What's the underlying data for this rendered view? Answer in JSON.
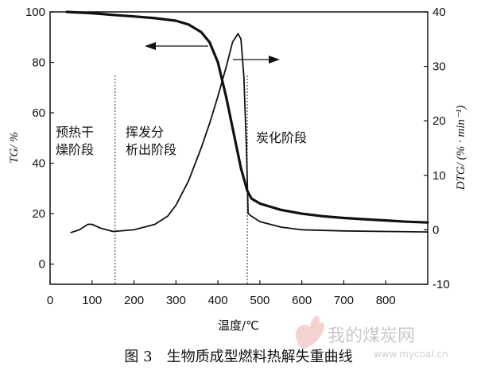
{
  "chart_data": {
    "type": "line",
    "caption": "图 3　生物质成型燃料热解失重曲线",
    "xlabel": "温度/℃",
    "ylabel_left": "TG/ %",
    "ylabel_right": "DTG/ (% · min⁻¹)",
    "xlim": [
      0,
      900
    ],
    "ylim_left": [
      -8,
      100
    ],
    "ylim_right": [
      -10,
      40
    ],
    "x_ticks": [
      0,
      100,
      200,
      300,
      400,
      500,
      600,
      700,
      800
    ],
    "y_left_ticks": [
      0,
      20,
      40,
      60,
      80,
      100
    ],
    "y_right_ticks": [
      -10,
      0,
      10,
      20,
      30,
      40
    ],
    "stage_boundaries": [
      155,
      470
    ],
    "stages": [
      "预热干燥阶段",
      "挥发分析出阶段",
      "炭化阶段"
    ],
    "stage_label_lines": [
      [
        "预热干",
        "燥阶段"
      ],
      [
        "挥发分",
        "析出阶段"
      ],
      [
        "炭化阶段"
      ]
    ],
    "series": [
      {
        "axis": "left",
        "x": [
          40,
          100,
          150,
          200,
          250,
          300,
          330,
          360,
          380,
          400,
          420,
          440,
          455,
          470,
          480,
          500,
          550,
          600,
          650,
          700,
          750,
          800,
          850,
          900
        ],
        "values": [
          100,
          99.5,
          98.8,
          98.2,
          97.5,
          96.5,
          95,
          92,
          88,
          80,
          66,
          50,
          38,
          29,
          26,
          24,
          21.5,
          20,
          19,
          18.3,
          17.8,
          17.3,
          16.8,
          16.5
        ]
      },
      {
        "axis": "right",
        "x": [
          50,
          70,
          90,
          100,
          120,
          150,
          200,
          250,
          280,
          300,
          330,
          360,
          380,
          400,
          420,
          435,
          448,
          455,
          462,
          468,
          472,
          480,
          500,
          550,
          600,
          700,
          800,
          900
        ],
        "values": [
          -0.5,
          0,
          1,
          1,
          0.3,
          -0.3,
          0,
          1,
          2.5,
          4.5,
          9,
          15,
          19.5,
          24.5,
          30,
          34.5,
          36,
          35,
          28,
          15,
          3,
          2.5,
          1.5,
          0.5,
          0,
          -0.2,
          -0.3,
          -0.4
        ]
      }
    ]
  },
  "watermark": {
    "text": "我的煤炭网",
    "url": "www.mycoal.cn"
  }
}
